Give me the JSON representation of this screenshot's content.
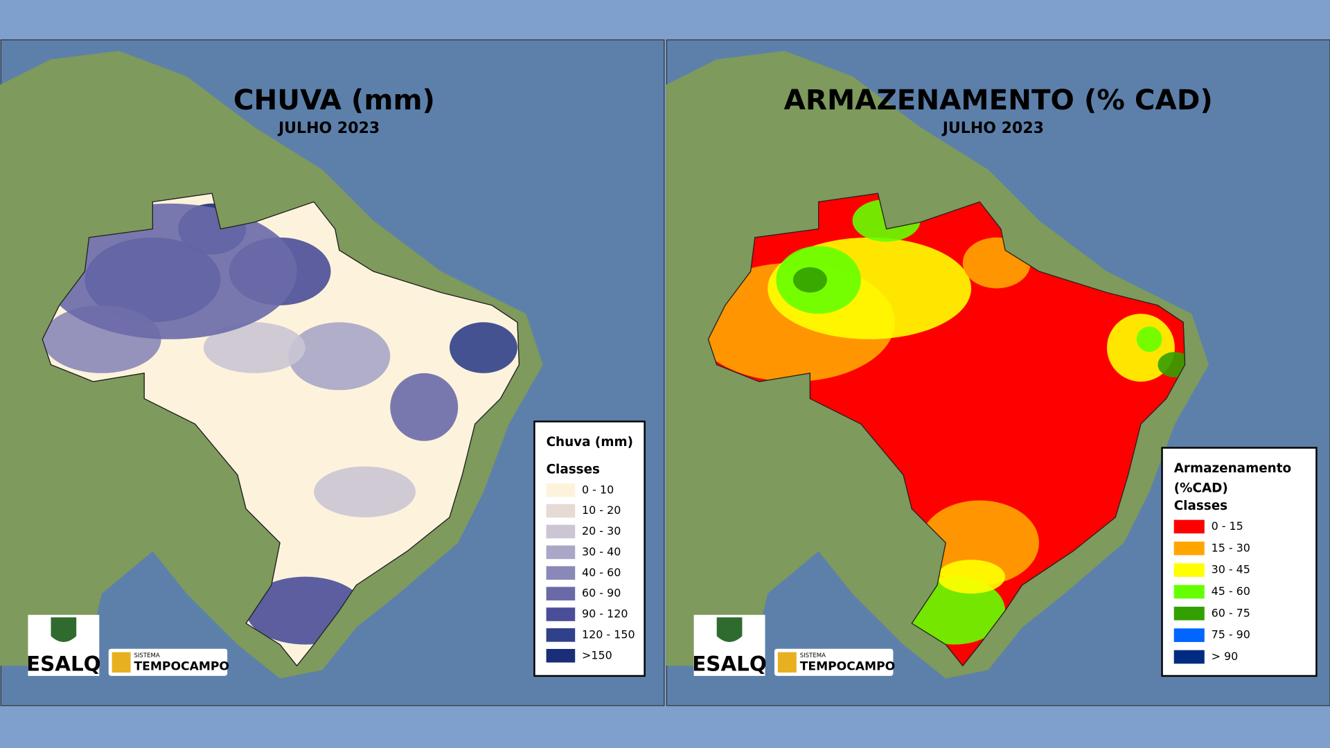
{
  "panels": [
    {
      "title": "CHUVA (mm)",
      "subtitle": "JULHO 2023",
      "legend": {
        "title": [
          "Chuva (mm)"
        ],
        "subtitle": "Classes",
        "classes": [
          {
            "label": "0 - 10",
            "color": "#fdf3dc"
          },
          {
            "label": "10 - 20",
            "color": "#e5dad4"
          },
          {
            "label": "20 - 30",
            "color": "#cbc5d4"
          },
          {
            "label": "30 - 40",
            "color": "#a9a6c8"
          },
          {
            "label": "40 - 60",
            "color": "#8a88b8"
          },
          {
            "label": "60 - 90",
            "color": "#6a6aa8"
          },
          {
            "label": "90 - 120",
            "color": "#4a4e98"
          },
          {
            "label": "120 - 150",
            "color": "#30408a"
          },
          {
            "label": ">150",
            "color": "#1a2e78"
          }
        ]
      },
      "logos": {
        "esalq": "ESALQ",
        "sistema": "SISTEMA",
        "tempocampo": "TEMPOCAMPO"
      }
    },
    {
      "title": "ARMAZENAMENTO (% CAD)",
      "subtitle": "JULHO 2023",
      "legend": {
        "title": [
          "Armazenamento",
          "(%CAD)"
        ],
        "subtitle": "Classes",
        "classes": [
          {
            "label": "0 - 15",
            "color": "#ff0000"
          },
          {
            "label": "15 - 30",
            "color": "#ffa500"
          },
          {
            "label": "30 - 45",
            "color": "#ffff00"
          },
          {
            "label": "45 - 60",
            "color": "#66ff00"
          },
          {
            "label": "60 - 75",
            "color": "#33a000"
          },
          {
            "label": "75 - 90",
            "color": "#0066ff"
          },
          {
            "label": "> 90",
            "color": "#002b80"
          }
        ]
      },
      "logos": {
        "esalq": "ESALQ",
        "sistema": "SISTEMA",
        "tempocampo": "TEMPOCAMPO"
      }
    }
  ]
}
